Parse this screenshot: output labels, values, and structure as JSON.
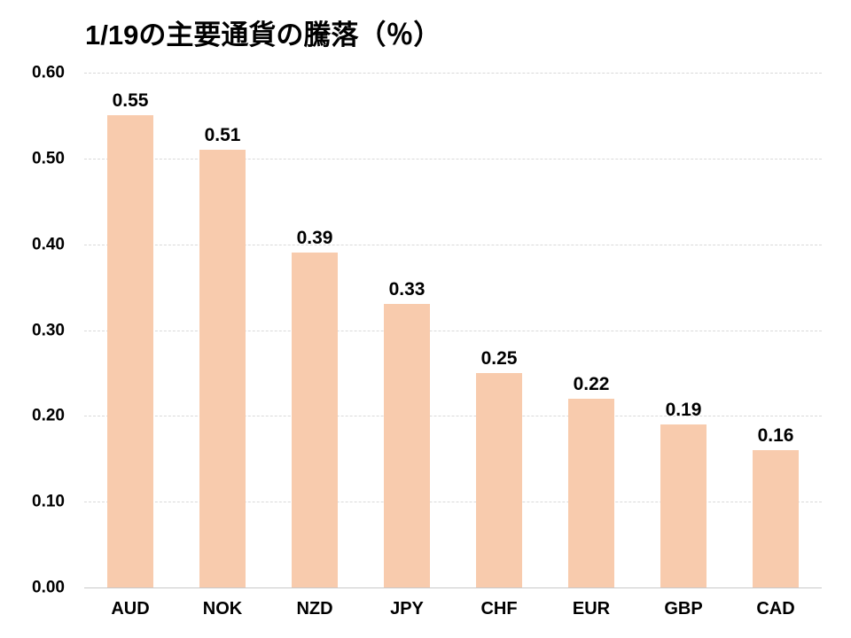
{
  "page": {
    "background": "#FFFFFF"
  },
  "chart_data": {
    "type": "bar",
    "title": "1/19の主要通貨の騰落（％）",
    "categories": [
      "AUD",
      "NOK",
      "NZD",
      "JPY",
      "CHF",
      "EUR",
      "GBP",
      "CAD"
    ],
    "values": [
      0.55,
      0.51,
      0.39,
      0.33,
      0.25,
      0.22,
      0.19,
      0.16
    ],
    "data_labels": [
      "0.55",
      "0.51",
      "0.39",
      "0.33",
      "0.25",
      "0.22",
      "0.19",
      "0.16"
    ],
    "xlabel": "",
    "ylabel": "",
    "ylim": [
      0,
      0.6
    ],
    "ytick_labels": [
      "0.00",
      "0.10",
      "0.20",
      "0.30",
      "0.40",
      "0.50",
      "0.60"
    ],
    "grid": "horizontal-dashed",
    "legend": "none",
    "bar_color": "#F8CBAD",
    "gridline_color": "#D9D9D9",
    "axis_line_color": "#C8C8C8",
    "text_color": "#000000"
  }
}
